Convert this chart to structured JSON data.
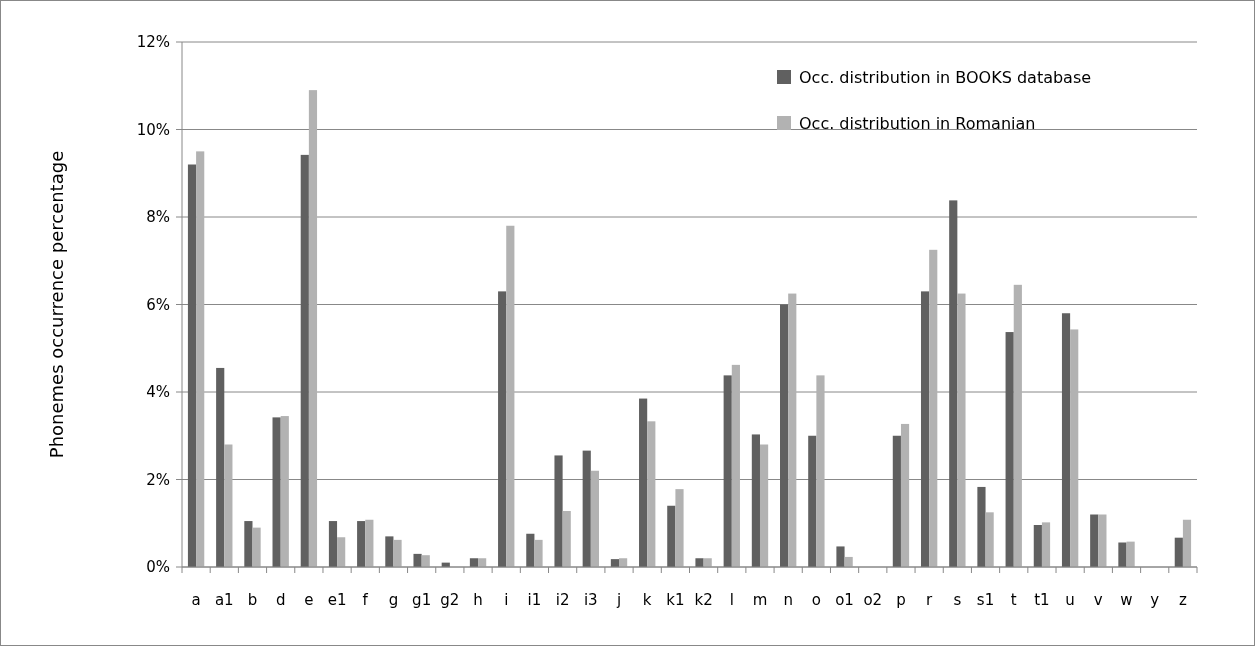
{
  "chart_data": {
    "type": "bar",
    "ylabel": "Phonemes occurrence percentage",
    "categories": [
      "a",
      "a1",
      "b",
      "d",
      "e",
      "e1",
      "f",
      "g",
      "g1",
      "g2",
      "h",
      "i",
      "i1",
      "i2",
      "i3",
      "j",
      "k",
      "k1",
      "k2",
      "l",
      "m",
      "n",
      "o",
      "o1",
      "o2",
      "p",
      "r",
      "s",
      "s1",
      "t",
      "t1",
      "u",
      "v",
      "w",
      "y",
      "z"
    ],
    "series": [
      {
        "name": "Occ. distribution in BOOKS database",
        "color": "#606060",
        "values": [
          9.2,
          4.55,
          1.05,
          3.42,
          9.42,
          1.05,
          1.05,
          0.7,
          0.3,
          0.1,
          0.2,
          6.3,
          0.76,
          2.55,
          2.66,
          0.18,
          3.85,
          1.4,
          0.2,
          4.38,
          3.03,
          6.0,
          3.0,
          0.47,
          0,
          3.0,
          6.3,
          8.38,
          1.83,
          5.37,
          0.96,
          5.8,
          1.2,
          0.56,
          0,
          0.67
        ]
      },
      {
        "name": "Occ. distribution in Romanian",
        "color": "#b2b2b2",
        "values": [
          9.5,
          2.8,
          0.9,
          3.45,
          10.9,
          0.68,
          1.08,
          0.62,
          0.27,
          null,
          0.2,
          7.8,
          0.62,
          1.28,
          2.2,
          0.2,
          3.33,
          1.78,
          0.2,
          4.62,
          2.8,
          6.25,
          4.38,
          0.23,
          0,
          3.27,
          7.25,
          6.25,
          1.25,
          6.45,
          1.02,
          5.43,
          1.2,
          0.58,
          0,
          1.08
        ]
      }
    ],
    "ylim": [
      0,
      12
    ],
    "yticks": [
      {
        "value": 0,
        "label": "0%"
      },
      {
        "value": 2,
        "label": "2%"
      },
      {
        "value": 4,
        "label": "4%"
      },
      {
        "value": 6,
        "label": "6%"
      },
      {
        "value": 8,
        "label": "8%"
      },
      {
        "value": 10,
        "label": "10%"
      },
      {
        "value": 12,
        "label": "12%"
      }
    ],
    "grid": "y",
    "legend": "top right"
  }
}
